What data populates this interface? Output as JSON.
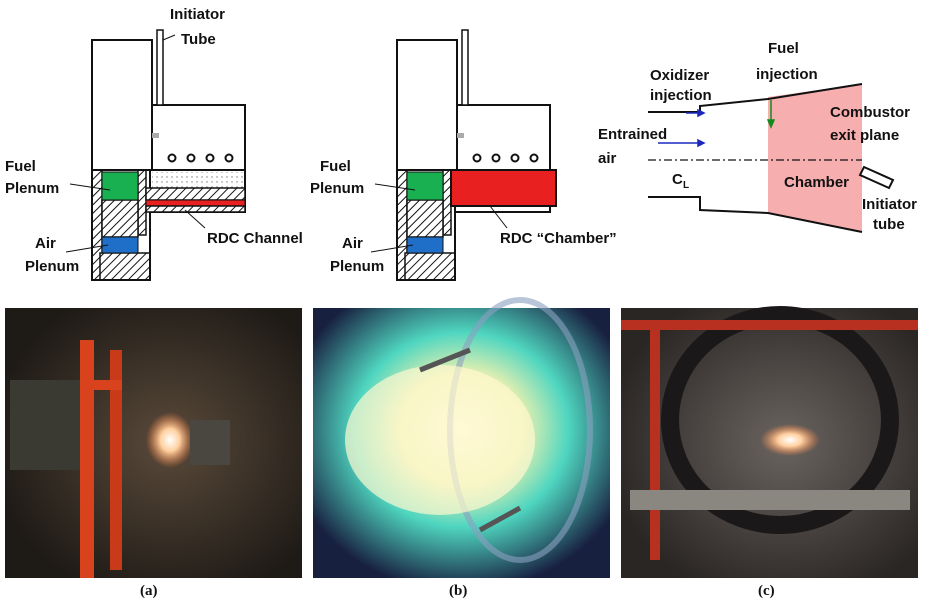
{
  "schematic_a": {
    "initiator_tube": [
      "Initiator",
      "Tube"
    ],
    "fuel_plenum": [
      "Fuel",
      "Plenum"
    ],
    "air_plenum": [
      "Air",
      "Plenum"
    ],
    "channel": "RDC Channel"
  },
  "schematic_b": {
    "fuel_plenum": [
      "Fuel",
      "Plenum"
    ],
    "air_plenum": [
      "Air",
      "Plenum"
    ],
    "chamber": "RDC “Chamber”"
  },
  "schematic_c": {
    "oxidizer_injection": [
      "Oxidizer",
      "injection"
    ],
    "fuel_injection": [
      "Fuel",
      "injection"
    ],
    "entrained_air": [
      "Entrained",
      "air"
    ],
    "centerline": "C",
    "centerline_sub": "L",
    "exit_plane": [
      "Combustor",
      "exit plane"
    ],
    "chamber": "Chamber",
    "initiator_tube": [
      "Initiator",
      "tube"
    ]
  },
  "captions": [
    "(a)",
    "(b)",
    "(c)"
  ]
}
